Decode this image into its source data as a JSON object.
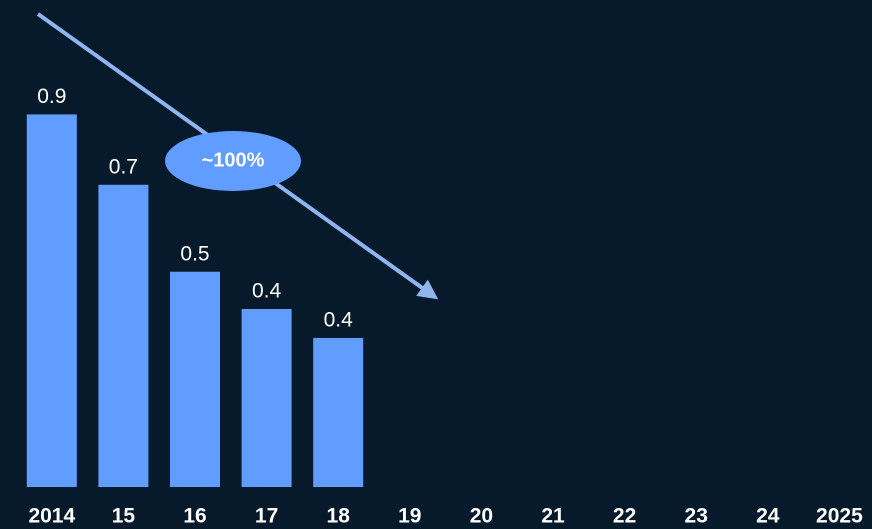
{
  "chart_data": {
    "type": "bar",
    "categories": [
      "2014",
      "15",
      "16",
      "17",
      "18",
      "19",
      "20",
      "21",
      "22",
      "23",
      "24",
      "2025"
    ],
    "values": [
      0.9,
      0.73,
      0.52,
      0.43,
      0.36,
      null,
      null,
      null,
      null,
      null,
      null,
      null
    ],
    "value_labels": [
      "0.9",
      "0.7",
      "0.5",
      "0.4",
      "0.4",
      null,
      null,
      null,
      null,
      null,
      null,
      null
    ],
    "color": "#619dff",
    "annotation": "~100%"
  }
}
